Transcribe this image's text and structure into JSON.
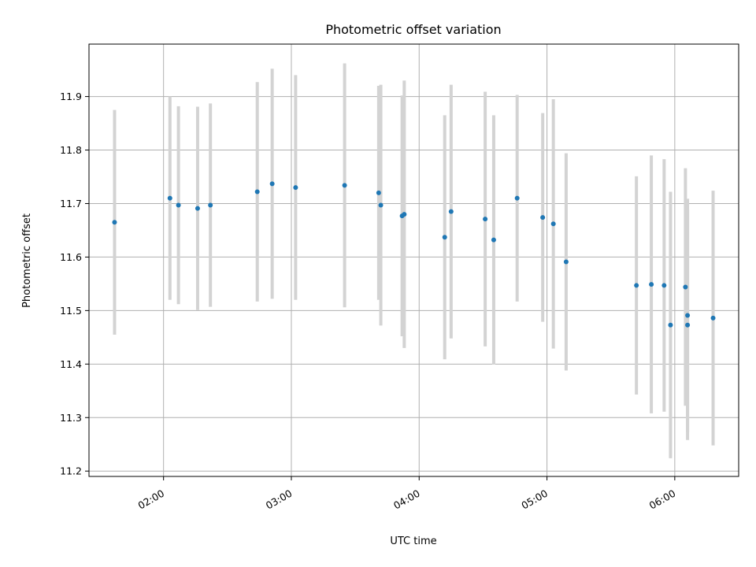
{
  "chart_data": {
    "type": "scatter",
    "title": "Photometric offset variation",
    "xlabel": "UTC time",
    "ylabel": "Photometric offset",
    "x_is_time": true,
    "xlim": [
      "01:25",
      "06:30"
    ],
    "ylim": [
      11.19,
      11.998
    ],
    "x_ticks": [
      "02:00",
      "03:00",
      "04:00",
      "05:00",
      "06:00"
    ],
    "y_ticks": [
      11.2,
      11.3,
      11.4,
      11.5,
      11.6,
      11.7,
      11.8,
      11.9
    ],
    "y_tick_labels": [
      "11.2",
      "11.3",
      "11.4",
      "11.5",
      "11.6",
      "11.7",
      "11.8",
      "11.9"
    ],
    "grid": true,
    "colors": {
      "point": "#1f77b4",
      "errorbar": "#d3d3d3",
      "grid": "#b0b0b0"
    },
    "points": [
      {
        "x": "01:37",
        "y": 11.665,
        "err": 0.21
      },
      {
        "x": "02:03",
        "y": 11.71,
        "err": 0.19
      },
      {
        "x": "02:07",
        "y": 11.697,
        "err": 0.185
      },
      {
        "x": "02:16",
        "y": 11.691,
        "err": 0.19
      },
      {
        "x": "02:22",
        "y": 11.697,
        "err": 0.19
      },
      {
        "x": "02:44",
        "y": 11.722,
        "err": 0.205
      },
      {
        "x": "02:51",
        "y": 11.737,
        "err": 0.215
      },
      {
        "x": "03:02",
        "y": 11.73,
        "err": 0.21
      },
      {
        "x": "03:25",
        "y": 11.734,
        "err": 0.228
      },
      {
        "x": "03:41",
        "y": 11.72,
        "err": 0.2
      },
      {
        "x": "03:42",
        "y": 11.697,
        "err": 0.225
      },
      {
        "x": "03:52",
        "y": 11.677,
        "err": 0.225
      },
      {
        "x": "03:53",
        "y": 11.68,
        "err": 0.25
      },
      {
        "x": "04:12",
        "y": 11.637,
        "err": 0.228
      },
      {
        "x": "04:15",
        "y": 11.685,
        "err": 0.237
      },
      {
        "x": "04:31",
        "y": 11.671,
        "err": 0.238
      },
      {
        "x": "04:35",
        "y": 11.632,
        "err": 0.233
      },
      {
        "x": "04:46",
        "y": 11.71,
        "err": 0.193
      },
      {
        "x": "04:58",
        "y": 11.674,
        "err": 0.195
      },
      {
        "x": "05:03",
        "y": 11.662,
        "err": 0.233
      },
      {
        "x": "05:09",
        "y": 11.591,
        "err": 0.203
      },
      {
        "x": "05:42",
        "y": 11.547,
        "err": 0.204
      },
      {
        "x": "05:49",
        "y": 11.549,
        "err": 0.241
      },
      {
        "x": "05:55",
        "y": 11.547,
        "err": 0.236
      },
      {
        "x": "05:58",
        "y": 11.473,
        "err": 0.249
      },
      {
        "x": "06:05",
        "y": 11.544,
        "err": 0.222
      },
      {
        "x": "06:06",
        "y": 11.473,
        "err": 0.215
      },
      {
        "x": "06:06",
        "y": 11.491,
        "err": 0.218
      },
      {
        "x": "06:18",
        "y": 11.486,
        "err": 0.238
      }
    ]
  }
}
